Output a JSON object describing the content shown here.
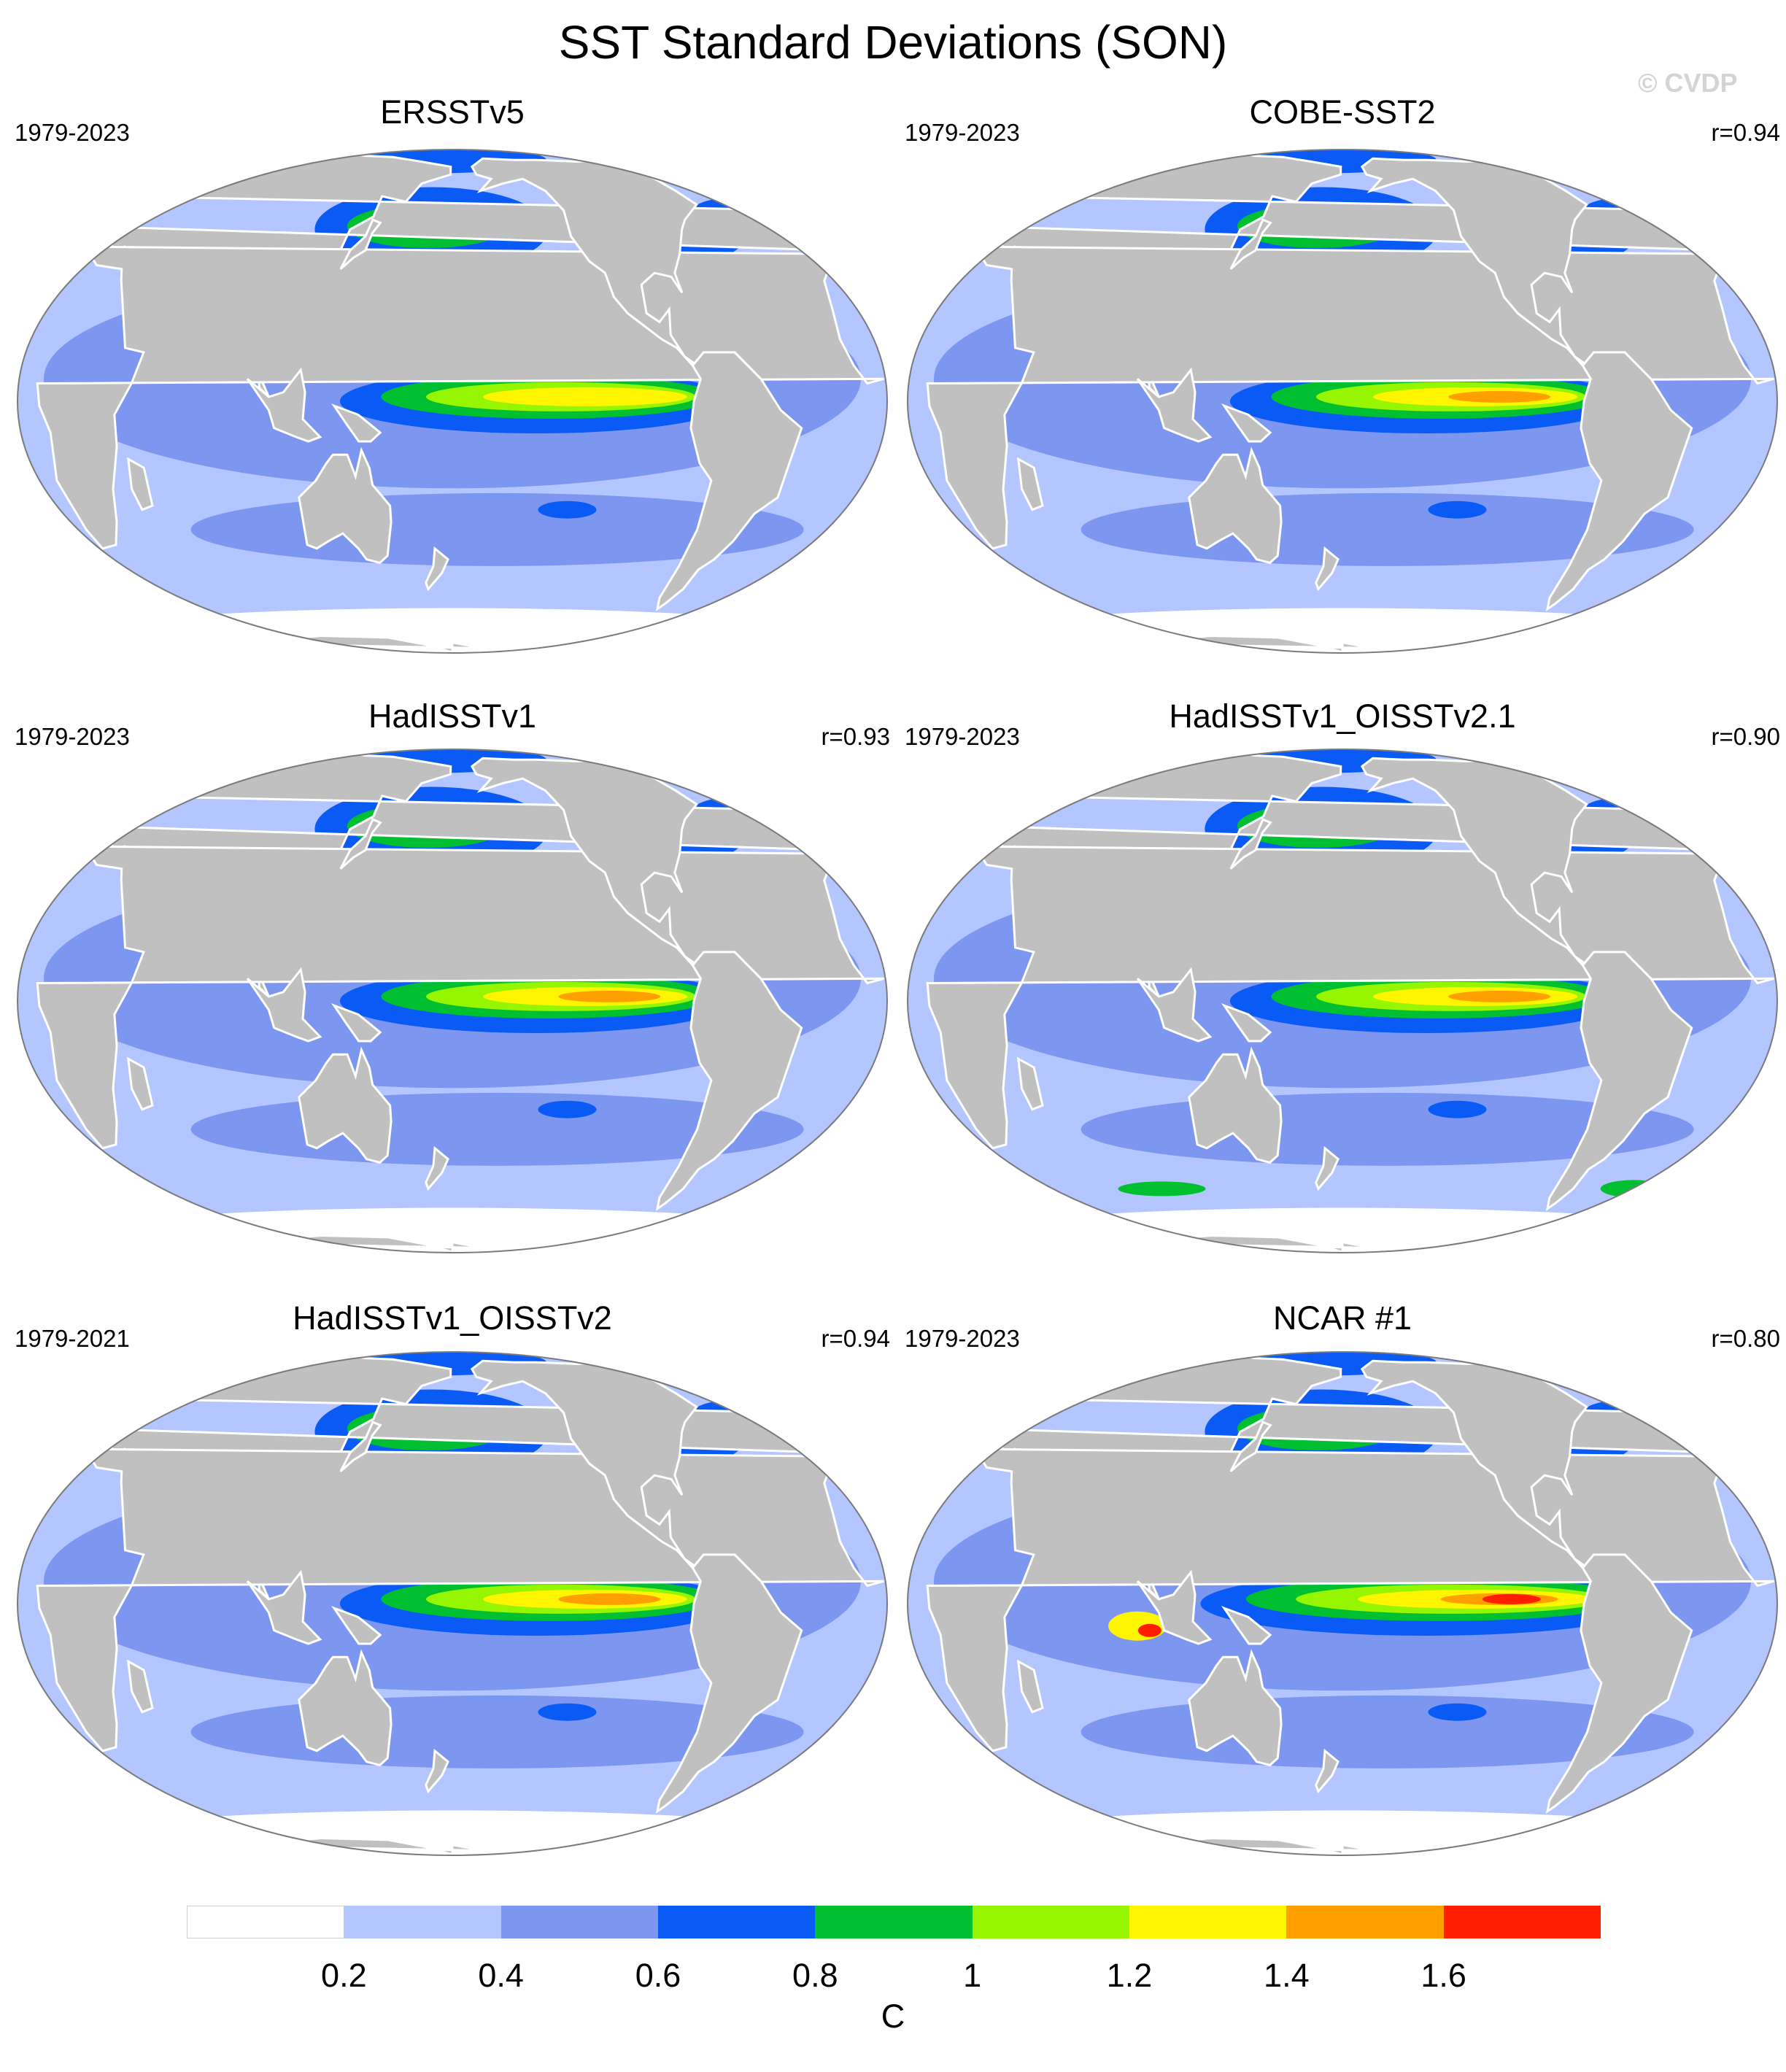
{
  "title": "SST Standard Deviations (SON)",
  "watermark": "© CVDP",
  "panels": [
    {
      "name": "ERSSTv5",
      "period": "1979-2023",
      "corr": "",
      "variant": 0
    },
    {
      "name": "COBE-SST2",
      "period": "1979-2023",
      "corr": "r=0.94",
      "variant": 1
    },
    {
      "name": "HadISSTv1",
      "period": "1979-2023",
      "corr": "r=0.93",
      "variant": 2
    },
    {
      "name": "HadISSTv1_OISSTv2.1",
      "period": "1979-2023",
      "corr": "r=0.90",
      "variant": 3
    },
    {
      "name": "HadISSTv1_OISSTv2",
      "period": "1979-2021",
      "corr": "r=0.94",
      "variant": 4
    },
    {
      "name": "NCAR #1",
      "period": "1979-2023",
      "corr": "r=0.80",
      "variant": 5
    }
  ],
  "colorbar": {
    "unit": "C",
    "ticks": [
      "0.2",
      "0.4",
      "0.6",
      "0.8",
      "1",
      "1.2",
      "1.4",
      "1.6"
    ],
    "colors": [
      "#ffffff",
      "#b4c6ff",
      "#7d96f0",
      "#0a5af5",
      "#00c032",
      "#96f500",
      "#fff500",
      "#ffa000",
      "#ff1e00"
    ]
  },
  "colors": {
    "land": "#c0c0c0",
    "coast": "#ffffff",
    "outline": "#7a7a7a"
  }
}
